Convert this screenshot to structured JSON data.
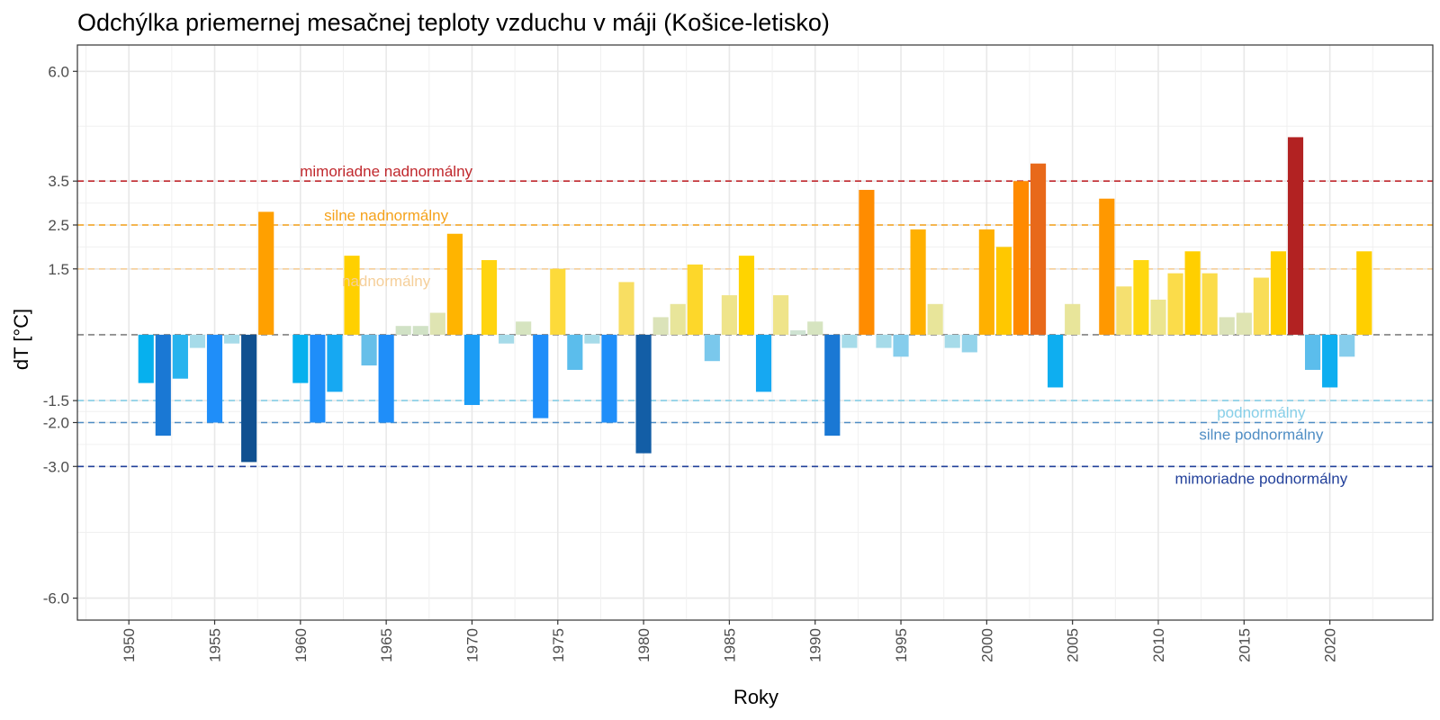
{
  "chart_data": {
    "type": "bar",
    "title": "Odchýlka priemernej mesačnej teploty vzduchu v máji (Košice-letisko)",
    "xlabel": "Roky",
    "ylabel": "dT [°C]",
    "xlim": [
      1947,
      2026
    ],
    "ylim": [
      -6.5,
      6.6
    ],
    "grid": true,
    "legend": "none",
    "x_ticks": [
      1950,
      1955,
      1960,
      1965,
      1970,
      1975,
      1980,
      1985,
      1990,
      1995,
      2000,
      2005,
      2010,
      2015,
      2020
    ],
    "y_ticks": [
      {
        "value": 6.0,
        "label": "6.0"
      },
      {
        "value": 3.5,
        "label": "3.5"
      },
      {
        "value": 2.5,
        "label": "2.5"
      },
      {
        "value": 1.5,
        "label": "1.5"
      },
      {
        "value": -1.5,
        "label": "-1.5"
      },
      {
        "value": -2.0,
        "label": "-2.0"
      },
      {
        "value": -3.0,
        "label": "-3.0"
      },
      {
        "value": -6.0,
        "label": "-6.0"
      }
    ],
    "reference_lines": [
      {
        "value": 3.5,
        "label": "mimoriadne nadnormálny",
        "color": "#c0282d",
        "label_year": 1965,
        "label_side": "above"
      },
      {
        "value": 2.5,
        "label": "silne nadnormálny",
        "color": "#f5a21b",
        "label_year": 1965,
        "label_side": "above"
      },
      {
        "value": 1.5,
        "label": "nadnormálny",
        "color": "#f5cf9a",
        "label_year": 1965,
        "label_side": "below"
      },
      {
        "value": 0.0,
        "label": "",
        "color": "#808080",
        "label_year": null,
        "label_side": "none"
      },
      {
        "value": -1.5,
        "label": "podnormálny",
        "color": "#87cfe8",
        "label_year": 2016,
        "label_side": "below"
      },
      {
        "value": -2.0,
        "label": "silne podnormálny",
        "color": "#4f8dc4",
        "label_year": 2016,
        "label_side": "below"
      },
      {
        "value": -3.0,
        "label": "mimoriadne podnormálny",
        "color": "#22409a",
        "label_year": 2016,
        "label_side": "below"
      }
    ],
    "bars": [
      {
        "year": 1951,
        "value": -1.1,
        "color": "#06b0ee"
      },
      {
        "year": 1952,
        "value": -2.3,
        "color": "#1a78d4"
      },
      {
        "year": 1953,
        "value": -1.0,
        "color": "#27b3ee"
      },
      {
        "year": 1954,
        "value": -0.3,
        "color": "#a6dbe9"
      },
      {
        "year": 1955,
        "value": -2.0,
        "color": "#1f8ef9"
      },
      {
        "year": 1956,
        "value": -0.2,
        "color": "#a6dbe9"
      },
      {
        "year": 1957,
        "value": -2.9,
        "color": "#105090"
      },
      {
        "year": 1958,
        "value": 2.8,
        "color": "#ffa000"
      },
      {
        "year": 1960,
        "value": -1.1,
        "color": "#06b0ee"
      },
      {
        "year": 1961,
        "value": -2.0,
        "color": "#1f8ef9"
      },
      {
        "year": 1962,
        "value": -1.3,
        "color": "#16a8f2"
      },
      {
        "year": 1963,
        "value": 1.8,
        "color": "#ffd000"
      },
      {
        "year": 1964,
        "value": -0.7,
        "color": "#66bfe9"
      },
      {
        "year": 1965,
        "value": -2.0,
        "color": "#1f8ef9"
      },
      {
        "year": 1966,
        "value": 0.2,
        "color": "#d1e2c6"
      },
      {
        "year": 1967,
        "value": 0.2,
        "color": "#d1e2c6"
      },
      {
        "year": 1968,
        "value": 0.5,
        "color": "#dfe4b2"
      },
      {
        "year": 1969,
        "value": 2.3,
        "color": "#ffb400"
      },
      {
        "year": 1970,
        "value": -1.6,
        "color": "#1b9cf5"
      },
      {
        "year": 1971,
        "value": 1.7,
        "color": "#ffd40f"
      },
      {
        "year": 1972,
        "value": -0.2,
        "color": "#a6dbe9"
      },
      {
        "year": 1973,
        "value": 0.3,
        "color": "#d6e4c0"
      },
      {
        "year": 1974,
        "value": -1.9,
        "color": "#1f8ef9"
      },
      {
        "year": 1975,
        "value": 1.5,
        "color": "#fdda3a"
      },
      {
        "year": 1976,
        "value": -0.8,
        "color": "#5bbdec"
      },
      {
        "year": 1977,
        "value": -0.2,
        "color": "#a6dbe9"
      },
      {
        "year": 1978,
        "value": -2.0,
        "color": "#1f8ef9"
      },
      {
        "year": 1979,
        "value": 1.2,
        "color": "#f8de62"
      },
      {
        "year": 1980,
        "value": -2.7,
        "color": "#135ea6"
      },
      {
        "year": 1981,
        "value": 0.4,
        "color": "#dbe3b9"
      },
      {
        "year": 1982,
        "value": 0.7,
        "color": "#e8e59a"
      },
      {
        "year": 1983,
        "value": 1.6,
        "color": "#fdd72a"
      },
      {
        "year": 1984,
        "value": -0.6,
        "color": "#7ac8ec"
      },
      {
        "year": 1985,
        "value": 0.9,
        "color": "#efe48a"
      },
      {
        "year": 1986,
        "value": 1.8,
        "color": "#ffd400"
      },
      {
        "year": 1987,
        "value": -1.3,
        "color": "#16a8f2"
      },
      {
        "year": 1988,
        "value": 0.9,
        "color": "#efe48a"
      },
      {
        "year": 1989,
        "value": 0.1,
        "color": "#cfe3d2"
      },
      {
        "year": 1990,
        "value": 0.3,
        "color": "#d6e4c0"
      },
      {
        "year": 1991,
        "value": -2.3,
        "color": "#1a78d4"
      },
      {
        "year": 1992,
        "value": -0.3,
        "color": "#a6dbe9"
      },
      {
        "year": 1993,
        "value": 3.3,
        "color": "#ff8c00"
      },
      {
        "year": 1994,
        "value": -0.3,
        "color": "#a6dbe9"
      },
      {
        "year": 1995,
        "value": -0.5,
        "color": "#86cdec"
      },
      {
        "year": 1996,
        "value": 2.4,
        "color": "#ffb000"
      },
      {
        "year": 1997,
        "value": 0.7,
        "color": "#e8e59a"
      },
      {
        "year": 1998,
        "value": -0.3,
        "color": "#a6dbe9"
      },
      {
        "year": 1999,
        "value": -0.4,
        "color": "#94d3ea"
      },
      {
        "year": 2000,
        "value": 2.4,
        "color": "#ffb000"
      },
      {
        "year": 2001,
        "value": 2.0,
        "color": "#ffc800"
      },
      {
        "year": 2002,
        "value": 3.5,
        "color": "#ff8a00"
      },
      {
        "year": 2003,
        "value": 3.9,
        "color": "#e8691a"
      },
      {
        "year": 2004,
        "value": -1.2,
        "color": "#0eaef0"
      },
      {
        "year": 2005,
        "value": 0.7,
        "color": "#e8e59a"
      },
      {
        "year": 2007,
        "value": 3.1,
        "color": "#ff9800"
      },
      {
        "year": 2008,
        "value": 1.1,
        "color": "#f5e070"
      },
      {
        "year": 2009,
        "value": 1.7,
        "color": "#ffd810"
      },
      {
        "year": 2010,
        "value": 0.8,
        "color": "#ece58f"
      },
      {
        "year": 2011,
        "value": 1.4,
        "color": "#fbdc4a"
      },
      {
        "year": 2012,
        "value": 1.9,
        "color": "#ffcf00"
      },
      {
        "year": 2013,
        "value": 1.4,
        "color": "#fbdc4a"
      },
      {
        "year": 2014,
        "value": 0.4,
        "color": "#dbe3b9"
      },
      {
        "year": 2015,
        "value": 0.5,
        "color": "#dfe4b2"
      },
      {
        "year": 2016,
        "value": 1.3,
        "color": "#f9dd58"
      },
      {
        "year": 2017,
        "value": 1.9,
        "color": "#ffcf00"
      },
      {
        "year": 2018,
        "value": 4.5,
        "color": "#b22222"
      },
      {
        "year": 2019,
        "value": -0.8,
        "color": "#5bbdec"
      },
      {
        "year": 2020,
        "value": -1.2,
        "color": "#0eaef0"
      },
      {
        "year": 2021,
        "value": -0.5,
        "color": "#86cdec"
      },
      {
        "year": 2022,
        "value": 1.9,
        "color": "#ffcf00"
      }
    ]
  }
}
